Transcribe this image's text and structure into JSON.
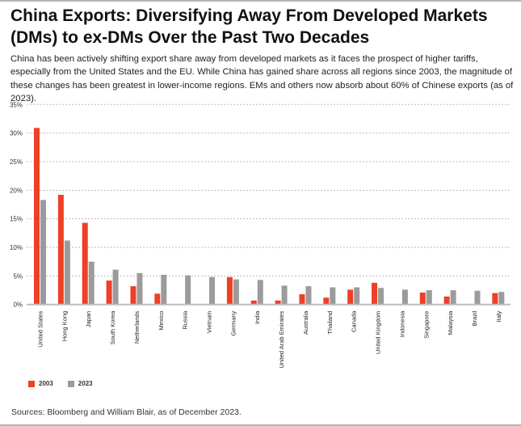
{
  "title": "China Exports: Diversifying Away From Developed Markets (DMs) to ex-DMs Over the Past Two Decades",
  "subtitle": "China has been actively shifting export share away from developed markets as it faces the prospect of higher tariffs, especially from the United States and the EU. While China has gained share across all regions since 2003, the magnitude of these changes has been greatest in lower-income regions. EMs and others now absorb about 60% of Chinese exports (as of 2023).",
  "source": "Sources: Bloomberg and William Blair, as of December 2023.",
  "chart_data": {
    "type": "bar",
    "title": "",
    "xlabel": "",
    "ylabel": "",
    "ylim": [
      0,
      35
    ],
    "yticks": [
      "0%",
      "5%",
      "10%",
      "15%",
      "20%",
      "25%",
      "30%",
      "35%"
    ],
    "grid": true,
    "legend_position": "bottom-left",
    "categories": [
      "United States",
      "Hong Kong",
      "Japan",
      "South Korea",
      "Netherlands",
      "Mexico",
      "Russia",
      "Vietnam",
      "Germany",
      "India",
      "United Arab Emirates",
      "Australia",
      "Thailand",
      "Canada",
      "United Kingdom",
      "Indonesia",
      "Singapore",
      "Malaysia",
      "Brazil",
      "Italy"
    ],
    "series": [
      {
        "name": "2003",
        "color": "#ee4027",
        "values": [
          30.9,
          19.2,
          14.3,
          4.2,
          3.2,
          1.9,
          null,
          null,
          4.8,
          0.7,
          0.7,
          1.8,
          1.2,
          2.6,
          3.8,
          null,
          2.1,
          1.4,
          null,
          2.0
        ]
      },
      {
        "name": "2023",
        "color": "#9b9b9b",
        "values": [
          18.3,
          11.2,
          7.5,
          6.1,
          5.5,
          5.2,
          5.1,
          4.8,
          4.4,
          4.3,
          3.3,
          3.2,
          3.0,
          3.0,
          2.9,
          2.6,
          2.5,
          2.5,
          2.4,
          2.2
        ]
      }
    ]
  }
}
